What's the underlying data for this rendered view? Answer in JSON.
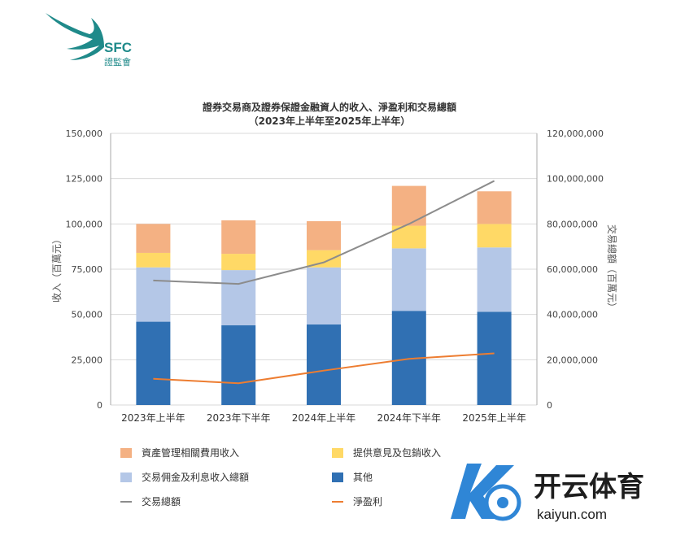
{
  "logo": {
    "acronym": "SFC",
    "name": "證監會"
  },
  "colors": {
    "others": "#3070b3",
    "trading": "#b4c7e7",
    "advisory": "#ffd966",
    "asset": "#f4b183",
    "turnover_line": "#8c8c8c",
    "profit_line": "#ed7d31",
    "logo_teal": "#1f8a8a"
  },
  "chart_data": {
    "type": "bar",
    "title": "證券交易商及證券保證金融資人的收入、淨盈利和交易總額",
    "subtitle": "（2023年上半年至2025年上半年）",
    "categories": [
      "2023年上半年",
      "2023年下半年",
      "2024年上半年",
      "2024年下半年",
      "2025年上半年"
    ],
    "ylabel": "收入（百萬元）",
    "y2label": "交易總額（百萬元）",
    "ylim": [
      0,
      150000
    ],
    "y2lim": [
      0,
      120000000
    ],
    "yticks": [
      "0",
      "25,000",
      "50,000",
      "75,000",
      "100,000",
      "125,000",
      "150,000"
    ],
    "y2ticks": [
      "0",
      "20,000,000",
      "40,000,000",
      "60,000,000",
      "80,000,000",
      "100,000,000",
      "120,000,000"
    ],
    "stack_series": [
      {
        "name": "其他",
        "color_key": "others",
        "values": [
          46000,
          44000,
          44500,
          52000,
          51500
        ]
      },
      {
        "name": "交易佣金及利息收入總額",
        "color_key": "trading",
        "values": [
          30000,
          30500,
          31500,
          34500,
          35500
        ]
      },
      {
        "name": "提供意見及包銷收入",
        "color_key": "advisory",
        "values": [
          8000,
          9000,
          9500,
          12500,
          13000
        ]
      },
      {
        "name": "資產管理相關費用收入",
        "color_key": "asset",
        "values": [
          16000,
          18500,
          16000,
          22000,
          18000
        ]
      }
    ],
    "line_series": [
      {
        "name": "交易總額",
        "color_key": "turnover_line",
        "axis": "right",
        "values": [
          55000000,
          53500000,
          63000000,
          80000000,
          99000000
        ]
      },
      {
        "name": "淨盈利",
        "color_key": "profit_line",
        "axis": "left",
        "values": [
          14500,
          12000,
          19000,
          25500,
          28500
        ]
      }
    ],
    "legend": [
      {
        "name": "資產管理相關費用收入",
        "kind": "box",
        "color_key": "asset"
      },
      {
        "name": "提供意見及包銷收入",
        "kind": "box",
        "color_key": "advisory"
      },
      {
        "name": "交易佣金及利息收入總額",
        "kind": "box",
        "color_key": "trading"
      },
      {
        "name": "其他",
        "kind": "box",
        "color_key": "others"
      },
      {
        "name": "交易總額",
        "kind": "line",
        "color_key": "turnover_line"
      },
      {
        "name": "淨盈利",
        "kind": "line",
        "color_key": "profit_line"
      }
    ],
    "grid": true,
    "legend_position": "bottom"
  },
  "watermark": {
    "brand": "开云体育",
    "url": "kaiyun.com"
  }
}
